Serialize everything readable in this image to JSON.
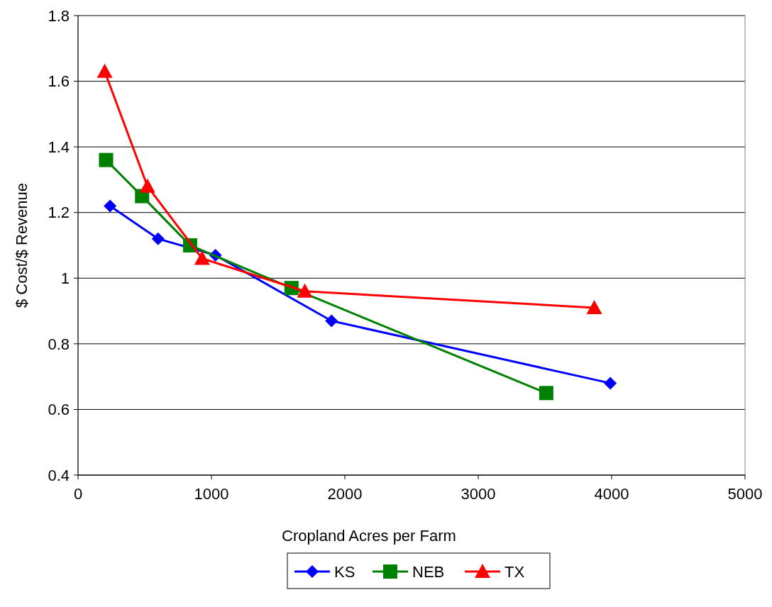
{
  "chart_data": {
    "type": "line",
    "xlabel": "Cropland Acres per Farm",
    "ylabel": "$ Cost/$ Revenue",
    "xlim": [
      0,
      5000
    ],
    "xticks": [
      0,
      1000,
      2000,
      3000,
      4000,
      5000
    ],
    "ylim": [
      0.4,
      1.8
    ],
    "yticks": [
      0.4,
      0.6,
      0.8,
      1,
      1.2,
      1.4,
      1.6,
      1.8
    ],
    "grid": "y",
    "legend": "bottom",
    "series": [
      {
        "name": "KS",
        "color": "#0000ff",
        "marker": "diamond",
        "x": [
          240,
          600,
          1030,
          1900,
          3990
        ],
        "values": [
          1.22,
          1.12,
          1.07,
          0.87,
          0.68
        ]
      },
      {
        "name": "NEB",
        "color": "#008000",
        "marker": "square",
        "x": [
          210,
          480,
          840,
          1600,
          3510
        ],
        "values": [
          1.36,
          1.25,
          1.1,
          0.97,
          0.65
        ]
      },
      {
        "name": "TX",
        "color": "#ff0000",
        "marker": "triangle",
        "x": [
          200,
          520,
          930,
          1700,
          3870
        ],
        "values": [
          1.63,
          1.28,
          1.06,
          0.96,
          0.91
        ]
      }
    ]
  }
}
